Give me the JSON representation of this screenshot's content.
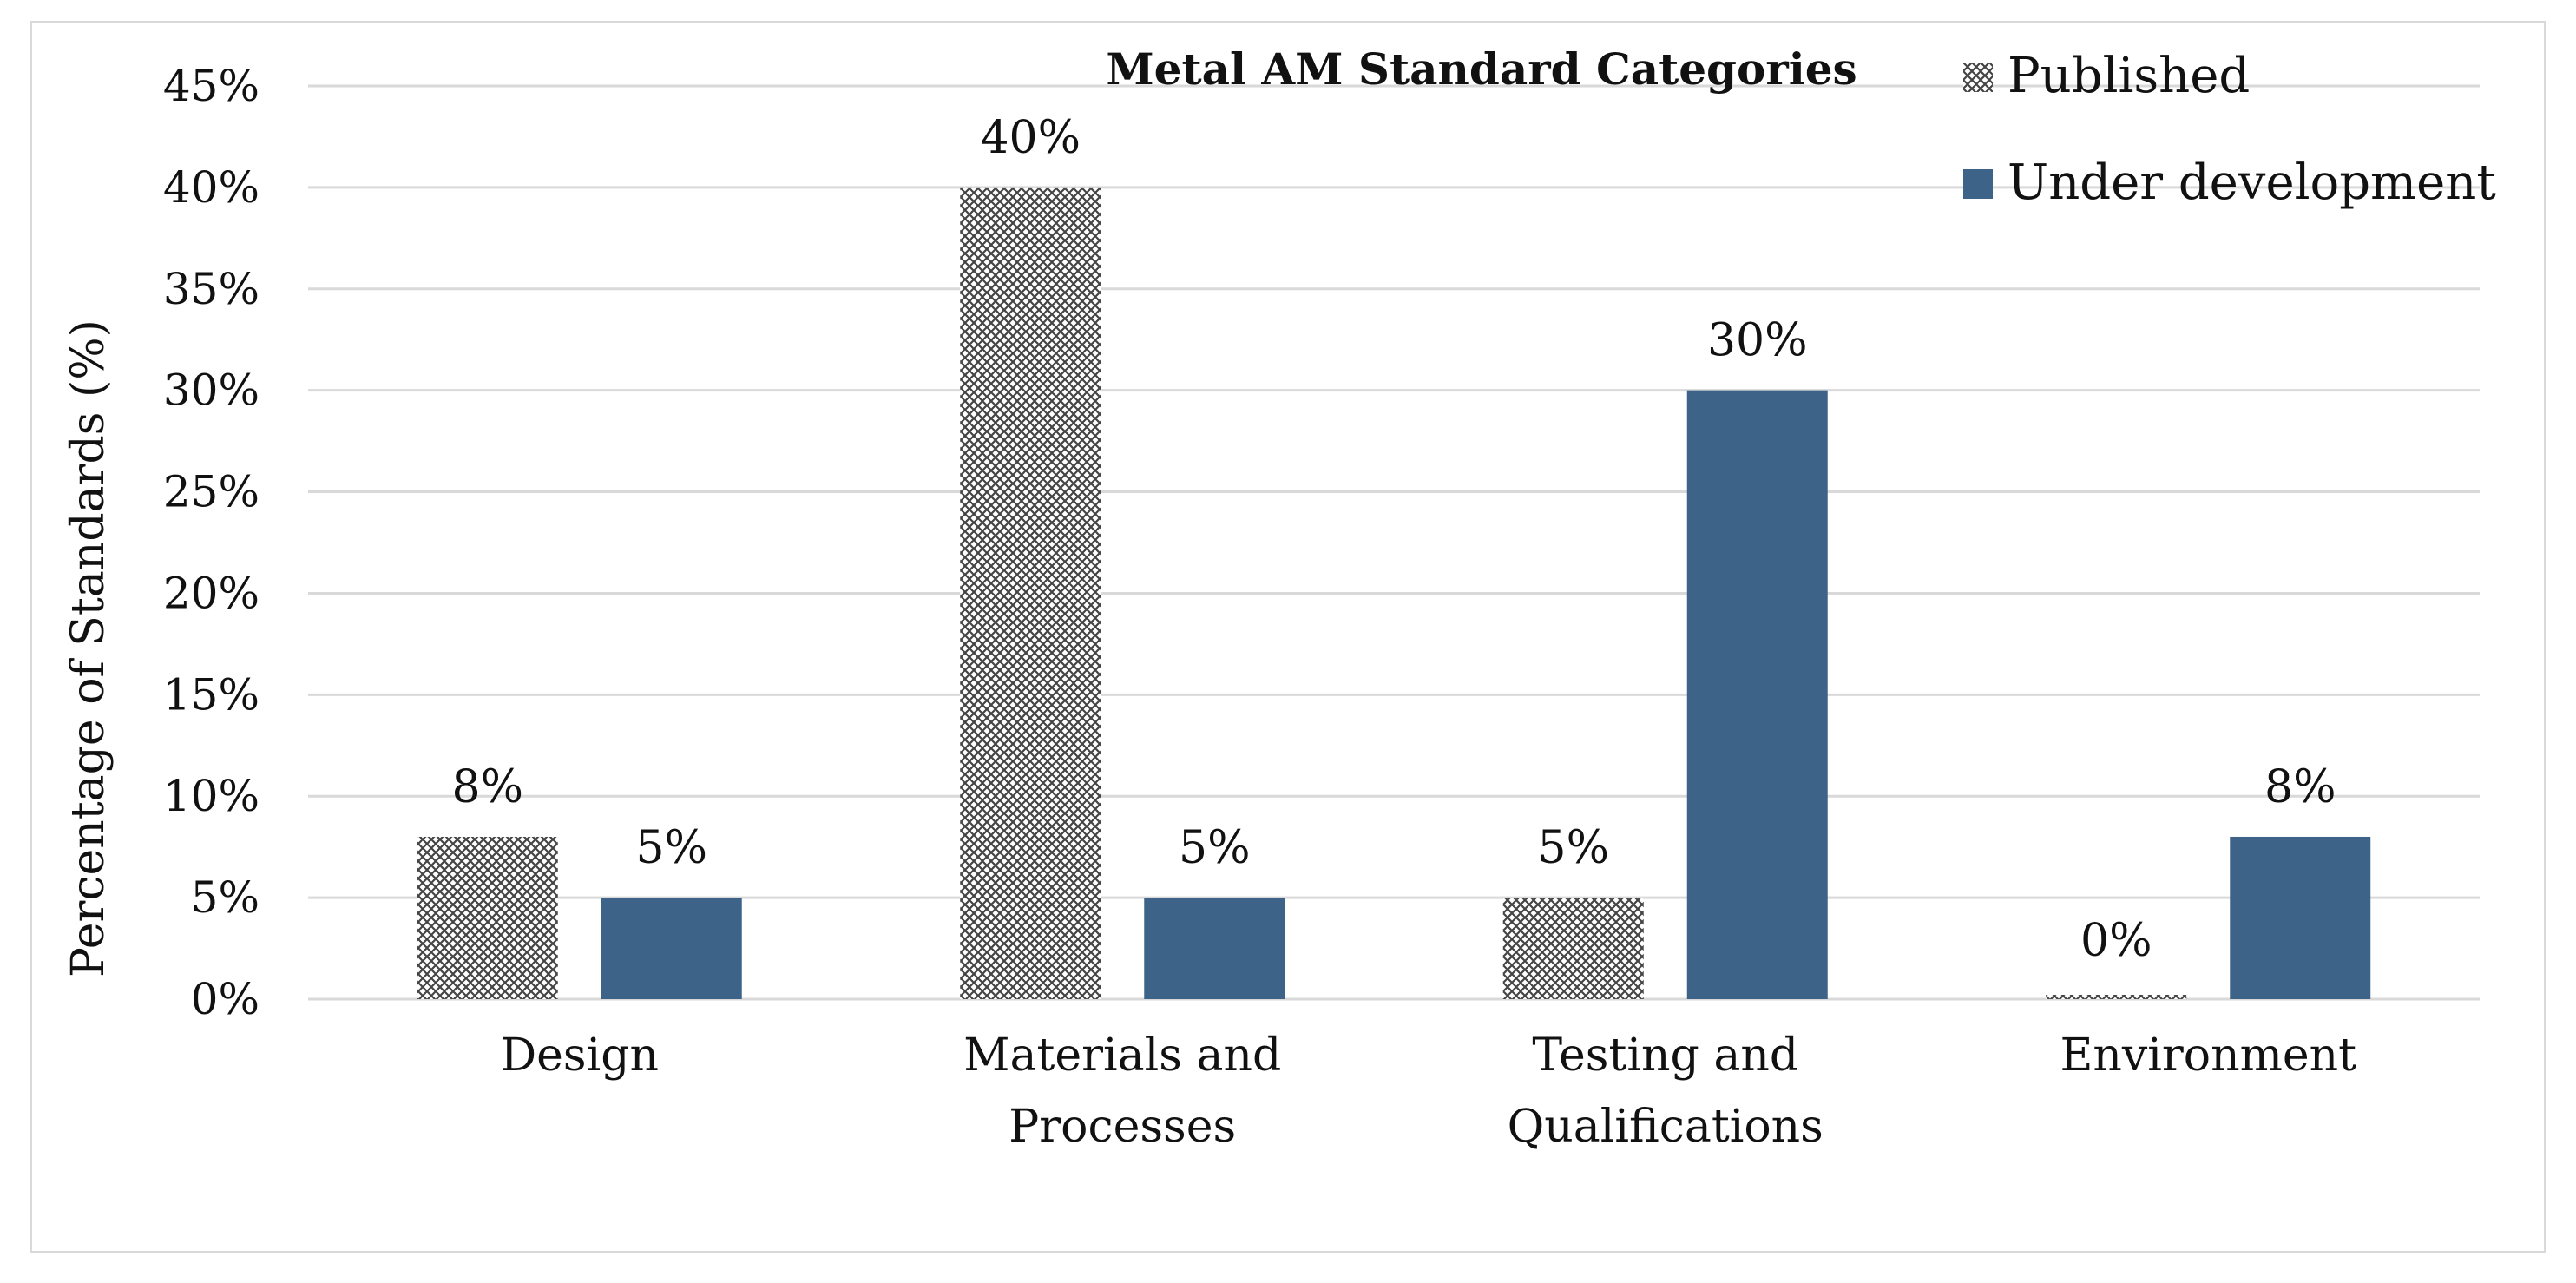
{
  "colors": {
    "published_hatch": "#444444",
    "under_development": "#3d6488",
    "gridline": "#d9d9d9",
    "text": "#111111"
  },
  "chart_data": {
    "type": "bar",
    "title": "Metal AM Standard Categories",
    "ylabel": "Percentage of Standards (%)",
    "xlabel": "",
    "ylim": [
      0,
      45
    ],
    "yticks": [
      "0%",
      "5%",
      "10%",
      "15%",
      "20%",
      "25%",
      "30%",
      "35%",
      "40%",
      "45%"
    ],
    "ytick_values": [
      0,
      5,
      10,
      15,
      20,
      25,
      30,
      35,
      40,
      45
    ],
    "grid": true,
    "legend_position": "top-right",
    "categories": [
      [
        "Design"
      ],
      [
        "Materials and",
        "Processes"
      ],
      [
        "Testing and",
        "Qualifications"
      ],
      [
        "Environment"
      ]
    ],
    "series": [
      {
        "name": "Published",
        "values": [
          8,
          40,
          5,
          0
        ],
        "labels": [
          "8%",
          "40%",
          "5%",
          "0%"
        ],
        "pattern": "crosshatch"
      },
      {
        "name": "Under development",
        "values": [
          5,
          5,
          30,
          8
        ],
        "labels": [
          "5%",
          "5%",
          "30%",
          "8%"
        ],
        "pattern": "solid"
      }
    ]
  }
}
